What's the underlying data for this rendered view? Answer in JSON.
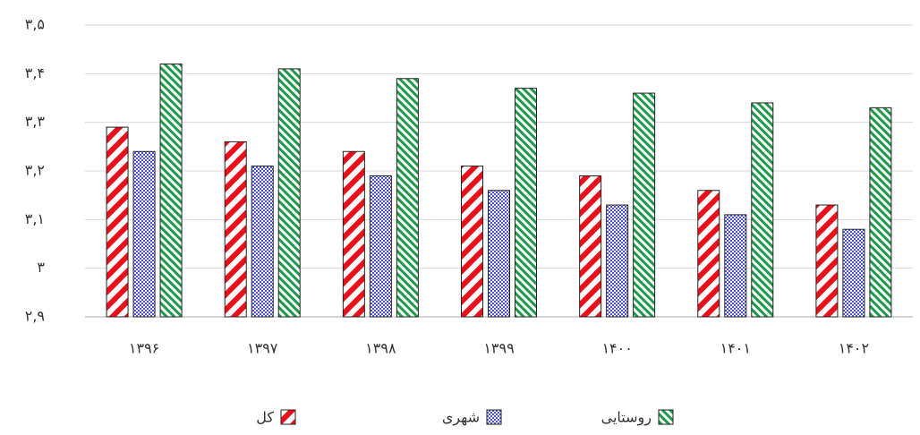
{
  "chart_data": {
    "type": "bar",
    "categories": [
      "۱۳۹۶",
      "۱۳۹۷",
      "۱۳۹۸",
      "۱۳۹۹",
      "۱۴۰۰",
      "۱۴۰۱",
      "۱۴۰۲"
    ],
    "series": [
      {
        "name": "کل",
        "color": "#e8101a",
        "values": [
          3.29,
          3.26,
          3.24,
          3.21,
          3.19,
          3.16,
          3.13
        ]
      },
      {
        "name": "شهری",
        "color": "#4a4fd8",
        "values": [
          3.24,
          3.21,
          3.19,
          3.16,
          3.13,
          3.11,
          3.08
        ]
      },
      {
        "name": "روستایی",
        "color": "#1c9a4a",
        "values": [
          3.42,
          3.41,
          3.39,
          3.37,
          3.36,
          3.34,
          3.33
        ]
      }
    ],
    "ylim": [
      2.9,
      3.5
    ],
    "yticks": [
      {
        "value": 2.9,
        "label": "۲,۹"
      },
      {
        "value": 3,
        "label": "۳"
      },
      {
        "value": 3.1,
        "label": "۳,۱"
      },
      {
        "value": 3.2,
        "label": "۳,۲"
      },
      {
        "value": 3.3,
        "label": "۳,۳"
      },
      {
        "value": 3.4,
        "label": "۳,۴"
      },
      {
        "value": 3.5,
        "label": "۳,۵"
      }
    ],
    "grid": true,
    "legend": "bottom"
  }
}
